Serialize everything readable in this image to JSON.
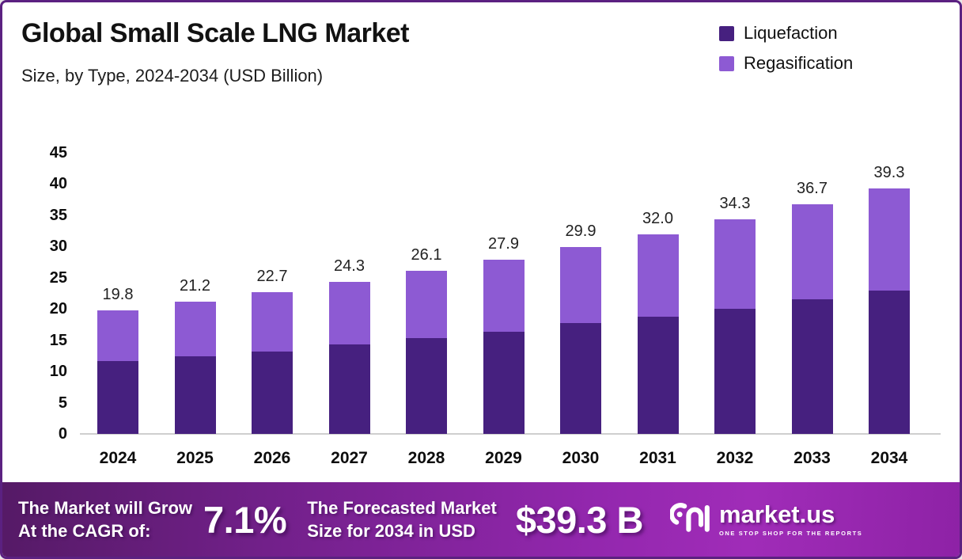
{
  "header": {
    "title": "Global Small Scale LNG Market",
    "subtitle": "Size, by Type, 2024-2034 (USD Billion)"
  },
  "legend": [
    {
      "label": "Liquefaction",
      "color": "#46207f"
    },
    {
      "label": "Regasification",
      "color": "#8d5ad3"
    }
  ],
  "chart_data": {
    "type": "bar",
    "stacked": true,
    "title": "Global Small Scale LNG Market Size, by Type, 2024-2034 (USD Billion)",
    "categories": [
      "2024",
      "2025",
      "2026",
      "2027",
      "2028",
      "2029",
      "2030",
      "2031",
      "2032",
      "2033",
      "2034"
    ],
    "series": [
      {
        "name": "Liquefaction",
        "color": "#46207f",
        "values": [
          11.6,
          12.4,
          13.2,
          14.3,
          15.3,
          16.3,
          17.7,
          18.8,
          20.0,
          21.5,
          23.0
        ]
      },
      {
        "name": "Regasification",
        "color": "#8d5ad3",
        "values": [
          8.2,
          8.8,
          9.5,
          10.0,
          10.8,
          11.6,
          12.2,
          13.2,
          14.3,
          15.2,
          16.3
        ]
      }
    ],
    "totals": [
      19.8,
      21.2,
      22.7,
      24.3,
      26.1,
      27.9,
      29.9,
      32.0,
      34.3,
      36.7,
      39.3
    ],
    "total_labels": [
      "19.8",
      "21.2",
      "22.7",
      "24.3",
      "26.1",
      "27.9",
      "29.9",
      "32.0",
      "34.3",
      "36.7",
      "39.3"
    ],
    "xlabel": "",
    "ylabel": "",
    "ylim": [
      0,
      45
    ],
    "ytick_step": 5,
    "grid": false,
    "legend_position": "top-right"
  },
  "footer": {
    "grow_line1": "The Market will Grow",
    "grow_line2": "At the CAGR of:",
    "cagr_value": "7.1%",
    "forecast_line1": "The Forecasted Market",
    "forecast_line2": "Size for 2034 in USD",
    "forecast_value": "$39.3 B",
    "logo_text": "market.us",
    "logo_tagline": "ONE STOP SHOP FOR THE REPORTS"
  },
  "colors": {
    "border": "#5b2181",
    "footer_gradient_start": "#551a66",
    "footer_gradient_end": "#a02cb8",
    "axis_line": "#cfcfcf"
  }
}
